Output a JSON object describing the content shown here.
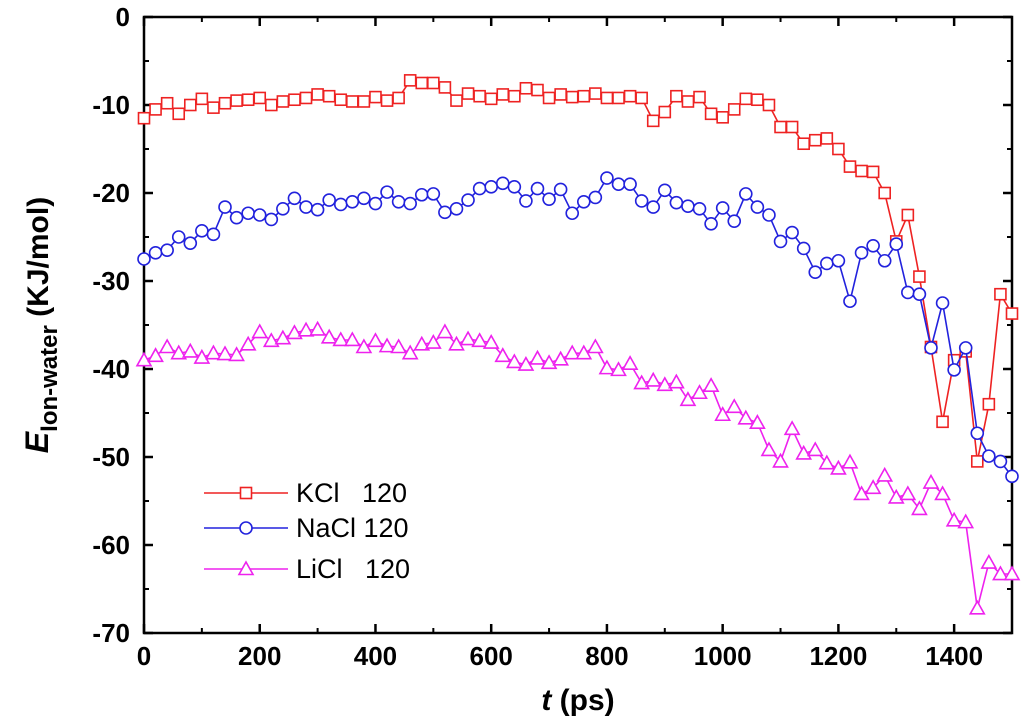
{
  "chart_data": {
    "type": "line",
    "xlabel": {
      "var": "t",
      "unit": " (ps)"
    },
    "ylabel": {
      "var": "E",
      "sub": "Ion-water",
      "unit": " (KJ/mol)"
    },
    "xlim": [
      0,
      1500
    ],
    "ylim": [
      -70,
      0
    ],
    "xticks": [
      0,
      200,
      400,
      600,
      800,
      1000,
      1200,
      1400
    ],
    "yticks": [
      0,
      -10,
      -20,
      -30,
      -40,
      -50,
      -60,
      -70
    ],
    "legend": {
      "position": "bottom-left"
    },
    "x": [
      0,
      20,
      40,
      60,
      80,
      100,
      120,
      140,
      160,
      180,
      200,
      220,
      240,
      260,
      280,
      300,
      320,
      340,
      360,
      380,
      400,
      420,
      440,
      460,
      480,
      500,
      520,
      540,
      560,
      580,
      600,
      620,
      640,
      660,
      680,
      700,
      720,
      740,
      760,
      780,
      800,
      820,
      840,
      860,
      880,
      900,
      920,
      940,
      960,
      980,
      1000,
      1020,
      1040,
      1060,
      1080,
      1100,
      1120,
      1140,
      1160,
      1180,
      1200,
      1220,
      1240,
      1260,
      1280,
      1300,
      1320,
      1340,
      1360,
      1380,
      1400,
      1420,
      1440,
      1460,
      1480,
      1500
    ],
    "series": [
      {
        "name": "KCl   120",
        "color": "#ee2222",
        "marker": "square",
        "values": [
          -11.5,
          -10.5,
          -9.8,
          -11.0,
          -10.0,
          -9.3,
          -10.3,
          -9.8,
          -9.5,
          -9.4,
          -9.2,
          -10.0,
          -9.6,
          -9.4,
          -9.2,
          -8.8,
          -9.0,
          -9.4,
          -9.6,
          -9.6,
          -9.1,
          -9.5,
          -9.2,
          -7.2,
          -7.5,
          -7.5,
          -8.0,
          -9.5,
          -8.7,
          -9.0,
          -9.3,
          -8.8,
          -9.0,
          -8.1,
          -8.3,
          -9.2,
          -8.8,
          -9.1,
          -9.0,
          -8.7,
          -9.2,
          -9.2,
          -9.0,
          -9.2,
          -11.8,
          -10.8,
          -9.0,
          -9.6,
          -9.1,
          -11.0,
          -11.4,
          -10.5,
          -9.3,
          -9.4,
          -10.0,
          -12.5,
          -12.5,
          -14.4,
          -14.0,
          -13.8,
          -15.0,
          -17.0,
          -17.5,
          -17.6,
          -20.0,
          -25.5,
          -22.5,
          -29.5,
          -37.5,
          -46.0,
          -39.0,
          -38.0,
          -50.5,
          -44.0,
          -31.5,
          -33.7
        ]
      },
      {
        "name": "NaCl 120",
        "color": "#2222dd",
        "marker": "circle",
        "values": [
          -27.5,
          -26.8,
          -26.5,
          -25.0,
          -25.7,
          -24.3,
          -24.7,
          -21.6,
          -22.8,
          -22.3,
          -22.5,
          -23.0,
          -21.8,
          -20.6,
          -21.6,
          -21.9,
          -20.8,
          -21.3,
          -21.0,
          -20.6,
          -21.2,
          -19.9,
          -21.0,
          -21.2,
          -20.2,
          -20.1,
          -22.2,
          -21.8,
          -20.8,
          -19.5,
          -19.3,
          -18.9,
          -19.3,
          -20.9,
          -19.5,
          -20.7,
          -19.6,
          -22.3,
          -21.0,
          -20.5,
          -18.3,
          -19.0,
          -19.0,
          -20.9,
          -21.6,
          -19.7,
          -21.1,
          -21.5,
          -21.8,
          -23.5,
          -21.7,
          -23.2,
          -20.1,
          -21.6,
          -22.5,
          -25.5,
          -24.5,
          -26.3,
          -29.0,
          -28.0,
          -27.7,
          -32.3,
          -26.8,
          -26.0,
          -27.7,
          -25.8,
          -31.3,
          -31.5,
          -37.6,
          -32.5,
          -40.1,
          -37.6,
          -47.3,
          -49.9,
          -50.5,
          -52.2
        ]
      },
      {
        "name": "LiCl   120",
        "color": "#ee22ee",
        "marker": "triangle",
        "values": [
          -39.0,
          -38.5,
          -37.5,
          -38.2,
          -38.0,
          -38.7,
          -38.2,
          -38.3,
          -38.4,
          -37.2,
          -35.8,
          -36.8,
          -36.5,
          -35.9,
          -35.6,
          -35.5,
          -36.4,
          -36.7,
          -36.7,
          -37.5,
          -36.8,
          -37.4,
          -37.5,
          -38.2,
          -37.2,
          -37.0,
          -35.8,
          -37.2,
          -36.6,
          -36.8,
          -37.0,
          -38.5,
          -39.2,
          -39.5,
          -38.8,
          -39.3,
          -38.9,
          -38.2,
          -38.2,
          -37.5,
          -39.9,
          -40.1,
          -39.4,
          -41.6,
          -41.3,
          -41.8,
          -41.5,
          -43.5,
          -42.7,
          -41.9,
          -45.2,
          -44.3,
          -45.6,
          -46.1,
          -49.2,
          -50.5,
          -46.8,
          -49.6,
          -49.2,
          -50.7,
          -51.3,
          -50.6,
          -54.2,
          -53.5,
          -52.1,
          -54.6,
          -54.2,
          -55.9,
          -52.9,
          -54.2,
          -57.2,
          -57.4,
          -67.2,
          -62.0,
          -63.3,
          -63.3
        ]
      }
    ]
  }
}
